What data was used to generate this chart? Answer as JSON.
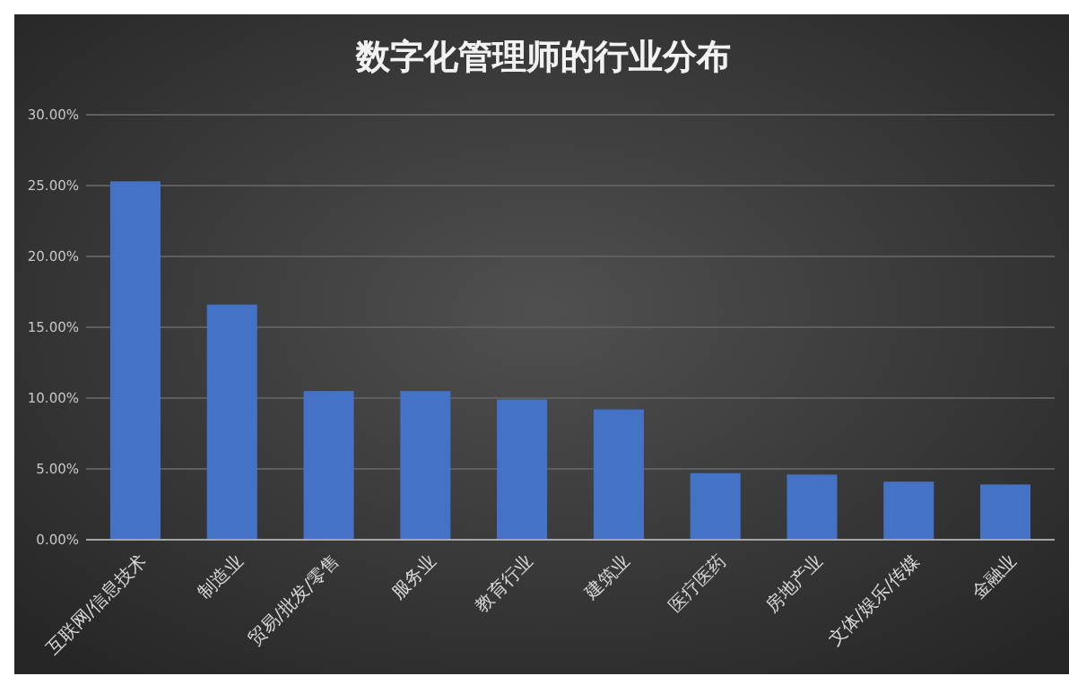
{
  "chart_data": {
    "type": "bar",
    "title": "数字化管理师的行业分布",
    "categories": [
      "互联网/信息技术",
      "制造业",
      "贸易/批发/零售",
      "服务业",
      "教育行业",
      "建筑业",
      "医疗医药",
      "房地产业",
      "文体/娱乐/传媒",
      "金融业"
    ],
    "values": [
      25.3,
      16.6,
      10.5,
      10.5,
      9.9,
      9.2,
      4.7,
      4.6,
      4.1,
      3.9
    ],
    "color": "#4472c4",
    "ylim": [
      0,
      30
    ],
    "yticks": [
      {
        "value": 0,
        "label": "0.00%"
      },
      {
        "value": 5,
        "label": "5.00%"
      },
      {
        "value": 10,
        "label": "10.00%"
      },
      {
        "value": 15,
        "label": "15.00%"
      },
      {
        "value": 20,
        "label": "20.00%"
      },
      {
        "value": 25,
        "label": "25.00%"
      },
      {
        "value": 30,
        "label": "30.00%"
      }
    ],
    "grid": "y"
  }
}
